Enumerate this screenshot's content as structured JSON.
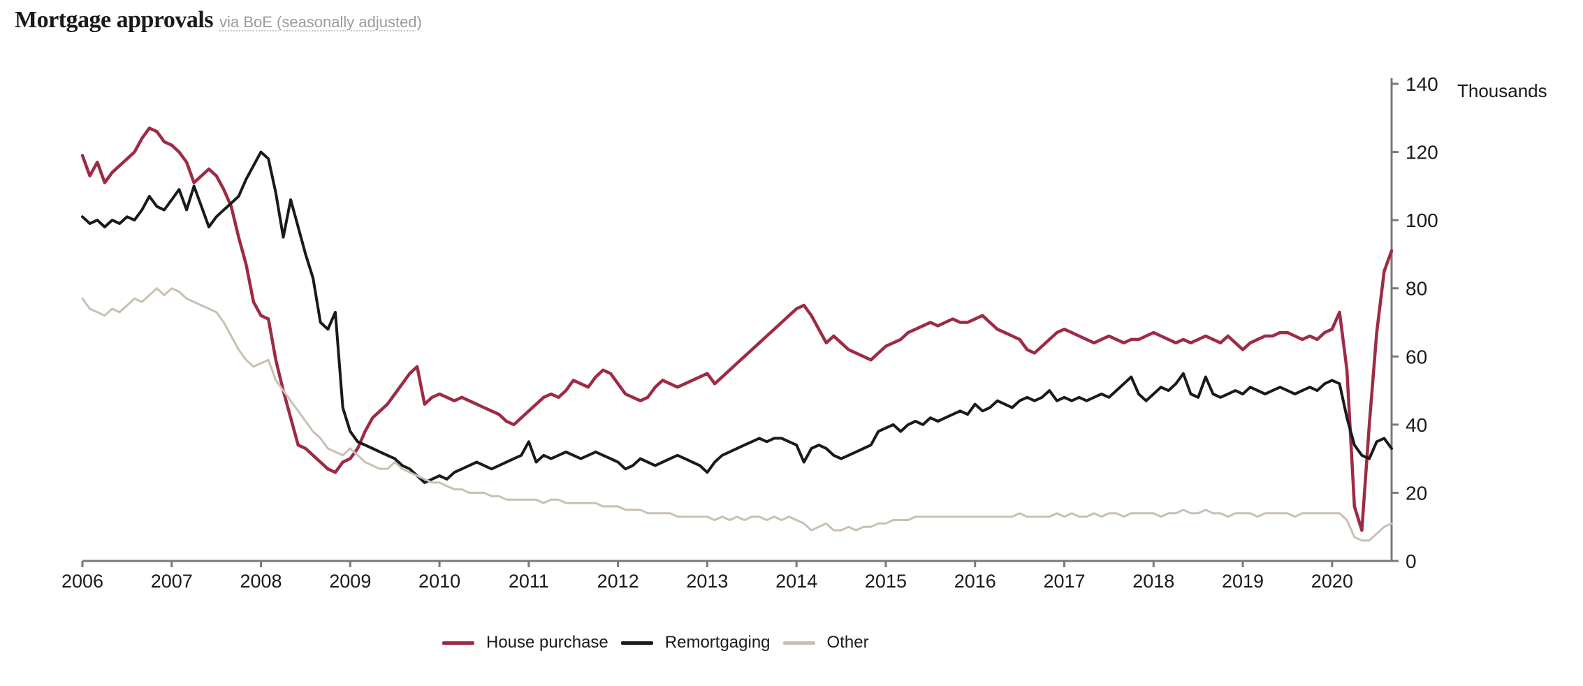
{
  "header": {
    "title": "Mortgage approvals",
    "subtitle": "via BoE (seasonally adjusted)"
  },
  "chart_data": {
    "type": "line",
    "title": "Mortgage approvals",
    "source_note": "via BoE (seasonally adjusted)",
    "unit_label": "Thousands",
    "frequency": "monthly",
    "x_start": "2006-01",
    "x_end": "2020-09",
    "x_tick_labels": [
      "2006",
      "2007",
      "2008",
      "2009",
      "2010",
      "2011",
      "2012",
      "2013",
      "2014",
      "2015",
      "2016",
      "2017",
      "2018",
      "2019",
      "2020"
    ],
    "ylim": [
      0,
      140
    ],
    "y_ticks": [
      0,
      20,
      40,
      60,
      80,
      100,
      120,
      140
    ],
    "grid": false,
    "legend_position": "bottom",
    "axis_color": "#7a7a7a",
    "series": [
      {
        "name": "House purchase",
        "color": "#9e2b45",
        "stroke_width": 4.5,
        "values": [
          119,
          113,
          117,
          111,
          114,
          116,
          118,
          120,
          124,
          127,
          126,
          123,
          122,
          120,
          117,
          111,
          113,
          115,
          113,
          109,
          104,
          95,
          87,
          76,
          72,
          71,
          59,
          50,
          42,
          34,
          33,
          31,
          29,
          27,
          26,
          29,
          30,
          33,
          38,
          42,
          44,
          46,
          49,
          52,
          55,
          57,
          46,
          48,
          49,
          48,
          47,
          48,
          47,
          46,
          45,
          44,
          43,
          41,
          40,
          42,
          44,
          46,
          48,
          49,
          48,
          50,
          53,
          52,
          51,
          54,
          56,
          55,
          52,
          49,
          48,
          47,
          48,
          51,
          53,
          52,
          51,
          52,
          53,
          54,
          55,
          52,
          54,
          56,
          58,
          60,
          62,
          64,
          66,
          68,
          70,
          72,
          74,
          75,
          72,
          68,
          64,
          66,
          64,
          62,
          61,
          60,
          59,
          61,
          63,
          64,
          65,
          67,
          68,
          69,
          70,
          69,
          70,
          71,
          70,
          70,
          71,
          72,
          70,
          68,
          67,
          66,
          65,
          62,
          61,
          63,
          65,
          67,
          68,
          67,
          66,
          65,
          64,
          65,
          66,
          65,
          64,
          65,
          65,
          66,
          67,
          66,
          65,
          64,
          65,
          64,
          65,
          66,
          65,
          64,
          66,
          64,
          62,
          64,
          65,
          66,
          66,
          67,
          67,
          66,
          65,
          66,
          65,
          67,
          68,
          73,
          56,
          16,
          9,
          40,
          67,
          85,
          91
        ]
      },
      {
        "name": "Remortgaging",
        "color": "#1a1a1a",
        "stroke_width": 4,
        "values": [
          101,
          99,
          100,
          98,
          100,
          99,
          101,
          100,
          103,
          107,
          104,
          103,
          106,
          109,
          103,
          110,
          104,
          98,
          101,
          103,
          105,
          107,
          112,
          116,
          120,
          118,
          108,
          95,
          106,
          98,
          90,
          83,
          70,
          68,
          73,
          45,
          38,
          35,
          34,
          33,
          32,
          31,
          30,
          28,
          27,
          25,
          23,
          24,
          25,
          24,
          26,
          27,
          28,
          29,
          28,
          27,
          28,
          29,
          30,
          31,
          35,
          29,
          31,
          30,
          31,
          32,
          31,
          30,
          31,
          32,
          31,
          30,
          29,
          27,
          28,
          30,
          29,
          28,
          29,
          30,
          31,
          30,
          29,
          28,
          26,
          29,
          31,
          32,
          33,
          34,
          35,
          36,
          35,
          36,
          36,
          35,
          34,
          29,
          33,
          34,
          33,
          31,
          30,
          31,
          32,
          33,
          34,
          38,
          39,
          40,
          38,
          40,
          41,
          40,
          42,
          41,
          42,
          43,
          44,
          43,
          46,
          44,
          45,
          47,
          46,
          45,
          47,
          48,
          47,
          48,
          50,
          47,
          48,
          47,
          48,
          47,
          48,
          49,
          48,
          50,
          52,
          54,
          49,
          47,
          49,
          51,
          50,
          52,
          55,
          49,
          48,
          54,
          49,
          48,
          49,
          50,
          49,
          51,
          50,
          49,
          50,
          51,
          50,
          49,
          50,
          51,
          50,
          52,
          53,
          52,
          42,
          34,
          31,
          30,
          35,
          36,
          33
        ]
      },
      {
        "name": "Other",
        "color": "#c9c0b2",
        "stroke_width": 3,
        "values": [
          77,
          74,
          73,
          72,
          74,
          73,
          75,
          77,
          76,
          78,
          80,
          78,
          80,
          79,
          77,
          76,
          75,
          74,
          73,
          70,
          66,
          62,
          59,
          57,
          58,
          59,
          53,
          50,
          47,
          44,
          41,
          38,
          36,
          33,
          32,
          31,
          33,
          31,
          29,
          28,
          27,
          27,
          29,
          27,
          26,
          25,
          24,
          23,
          23,
          22,
          21,
          21,
          20,
          20,
          20,
          19,
          19,
          18,
          18,
          18,
          18,
          18,
          17,
          18,
          18,
          17,
          17,
          17,
          17,
          17,
          16,
          16,
          16,
          15,
          15,
          15,
          14,
          14,
          14,
          14,
          13,
          13,
          13,
          13,
          13,
          12,
          13,
          12,
          13,
          12,
          13,
          13,
          12,
          13,
          12,
          13,
          12,
          11,
          9,
          10,
          11,
          9,
          9,
          10,
          9,
          10,
          10,
          11,
          11,
          12,
          12,
          12,
          13,
          13,
          13,
          13,
          13,
          13,
          13,
          13,
          13,
          13,
          13,
          13,
          13,
          13,
          14,
          13,
          13,
          13,
          13,
          14,
          13,
          14,
          13,
          13,
          14,
          13,
          14,
          14,
          13,
          14,
          14,
          14,
          14,
          13,
          14,
          14,
          15,
          14,
          14,
          15,
          14,
          14,
          13,
          14,
          14,
          14,
          13,
          14,
          14,
          14,
          14,
          13,
          14,
          14,
          14,
          14,
          14,
          14,
          12,
          7,
          6,
          6,
          8,
          10,
          11
        ]
      }
    ]
  }
}
